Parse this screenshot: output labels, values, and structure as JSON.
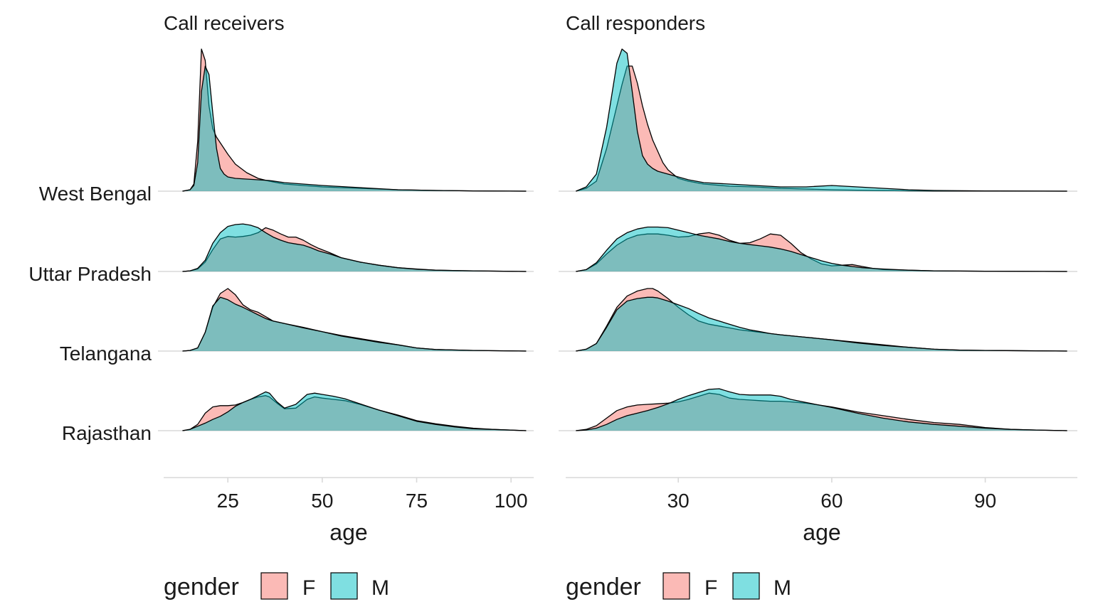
{
  "colors": {
    "F": "#F8766D",
    "M": "#00BFC4",
    "axis": "#d9d9d9",
    "outline": "#000000"
  },
  "chart_data": [
    {
      "type": "area",
      "title": "Call receivers",
      "xlabel": "age",
      "xlim": [
        8,
        106
      ],
      "xticks": [
        25,
        50,
        75,
        100
      ],
      "categories": [
        "West Bengal",
        "Uttar Pradesh",
        "Telangana",
        "Rajasthan"
      ],
      "legend": {
        "title": "gender",
        "position": "bottom",
        "entries": [
          "F",
          "M"
        ]
      },
      "series": [
        {
          "region": "West Bengal",
          "gender": "F",
          "x": [
            13,
            15,
            16,
            17,
            18,
            19,
            20,
            21,
            22,
            23,
            24,
            25,
            27,
            30,
            33,
            36,
            40,
            45,
            50,
            60,
            70,
            80,
            90,
            104
          ],
          "y": [
            0,
            0.01,
            0.05,
            0.35,
            1.0,
            0.92,
            0.6,
            0.44,
            0.38,
            0.34,
            0.3,
            0.26,
            0.19,
            0.13,
            0.09,
            0.07,
            0.05,
            0.04,
            0.03,
            0.02,
            0.01,
            0.005,
            0.002,
            0
          ]
        },
        {
          "region": "West Bengal",
          "gender": "M",
          "x": [
            13,
            15,
            16,
            17,
            18,
            19,
            20,
            21,
            22,
            23,
            24,
            25,
            27,
            30,
            33,
            36,
            40,
            45,
            50,
            60,
            70,
            80,
            90,
            104
          ],
          "y": [
            0,
            0.01,
            0.04,
            0.2,
            0.7,
            0.88,
            0.82,
            0.55,
            0.3,
            0.16,
            0.12,
            0.1,
            0.09,
            0.085,
            0.08,
            0.075,
            0.06,
            0.05,
            0.04,
            0.025,
            0.01,
            0.005,
            0.002,
            0
          ]
        },
        {
          "region": "Uttar Pradesh",
          "gender": "F",
          "x": [
            13,
            15,
            17,
            19,
            21,
            23,
            25,
            27,
            29,
            31,
            33,
            35,
            37,
            39,
            41,
            43,
            45,
            47,
            49,
            52,
            55,
            60,
            65,
            70,
            75,
            80,
            90,
            104
          ],
          "y": [
            0,
            0.01,
            0.04,
            0.15,
            0.35,
            0.52,
            0.56,
            0.55,
            0.56,
            0.58,
            0.62,
            0.7,
            0.66,
            0.6,
            0.55,
            0.55,
            0.5,
            0.43,
            0.37,
            0.3,
            0.22,
            0.15,
            0.1,
            0.06,
            0.04,
            0.02,
            0.01,
            0
          ]
        },
        {
          "region": "Uttar Pradesh",
          "gender": "M",
          "x": [
            13,
            15,
            17,
            19,
            21,
            23,
            25,
            27,
            29,
            31,
            33,
            35,
            37,
            39,
            41,
            43,
            45,
            47,
            49,
            52,
            55,
            60,
            65,
            70,
            75,
            80,
            90,
            104
          ],
          "y": [
            0,
            0.01,
            0.05,
            0.18,
            0.45,
            0.62,
            0.72,
            0.75,
            0.76,
            0.74,
            0.7,
            0.62,
            0.55,
            0.5,
            0.46,
            0.44,
            0.42,
            0.38,
            0.33,
            0.28,
            0.22,
            0.15,
            0.1,
            0.06,
            0.035,
            0.02,
            0.01,
            0
          ]
        },
        {
          "region": "Telangana",
          "gender": "F",
          "x": [
            13,
            15,
            17,
            19,
            21,
            23,
            25,
            27,
            29,
            31,
            33,
            35,
            37,
            40,
            45,
            50,
            55,
            60,
            65,
            70,
            75,
            80,
            90,
            104
          ],
          "y": [
            0,
            0.01,
            0.05,
            0.3,
            0.7,
            0.92,
            1.0,
            0.9,
            0.74,
            0.66,
            0.62,
            0.55,
            0.48,
            0.44,
            0.38,
            0.31,
            0.25,
            0.2,
            0.15,
            0.1,
            0.05,
            0.025,
            0.01,
            0
          ]
        },
        {
          "region": "Telangana",
          "gender": "M",
          "x": [
            13,
            15,
            17,
            19,
            21,
            23,
            25,
            27,
            29,
            31,
            33,
            35,
            37,
            40,
            45,
            50,
            55,
            60,
            65,
            70,
            75,
            80,
            90,
            104
          ],
          "y": [
            0,
            0.01,
            0.05,
            0.3,
            0.72,
            0.86,
            0.82,
            0.75,
            0.7,
            0.64,
            0.58,
            0.52,
            0.48,
            0.44,
            0.37,
            0.31,
            0.24,
            0.19,
            0.14,
            0.1,
            0.05,
            0.025,
            0.01,
            0
          ]
        },
        {
          "region": "Rajasthan",
          "gender": "F",
          "x": [
            13,
            15,
            17,
            19,
            21,
            23,
            25,
            27,
            29,
            31,
            33,
            35,
            36,
            38,
            40,
            43,
            46,
            48,
            50,
            53,
            56,
            60,
            65,
            70,
            75,
            80,
            85,
            90,
            95,
            104
          ],
          "y": [
            0,
            0.02,
            0.1,
            0.28,
            0.38,
            0.4,
            0.4,
            0.41,
            0.45,
            0.5,
            0.54,
            0.56,
            0.54,
            0.44,
            0.35,
            0.36,
            0.5,
            0.54,
            0.52,
            0.5,
            0.48,
            0.42,
            0.33,
            0.25,
            0.16,
            0.11,
            0.07,
            0.04,
            0.02,
            0
          ]
        },
        {
          "region": "Rajasthan",
          "gender": "M",
          "x": [
            13,
            15,
            17,
            19,
            21,
            23,
            25,
            27,
            29,
            31,
            33,
            35,
            36,
            38,
            40,
            43,
            46,
            48,
            50,
            53,
            56,
            60,
            65,
            70,
            75,
            80,
            85,
            90,
            95,
            104
          ],
          "y": [
            0,
            0.02,
            0.07,
            0.12,
            0.18,
            0.23,
            0.3,
            0.39,
            0.45,
            0.5,
            0.56,
            0.62,
            0.6,
            0.46,
            0.36,
            0.42,
            0.58,
            0.6,
            0.58,
            0.55,
            0.51,
            0.43,
            0.33,
            0.24,
            0.15,
            0.1,
            0.06,
            0.03,
            0.02,
            0
          ]
        }
      ]
    },
    {
      "type": "area",
      "title": "Call responders",
      "xlabel": "age",
      "xlim": [
        8,
        108
      ],
      "xticks": [
        30,
        60,
        90
      ],
      "categories": [
        "West Bengal",
        "Uttar Pradesh",
        "Telangana",
        "Rajasthan"
      ],
      "legend": {
        "title": "gender",
        "position": "bottom",
        "entries": [
          "F",
          "M"
        ]
      },
      "series": [
        {
          "region": "West Bengal",
          "gender": "F",
          "x": [
            10,
            12,
            14,
            16,
            18,
            19,
            20,
            21,
            22,
            23,
            24,
            25,
            26,
            27,
            28,
            30,
            32,
            35,
            40,
            45,
            50,
            55,
            60,
            65,
            70,
            75,
            80,
            90,
            106
          ],
          "y": [
            0,
            0.02,
            0.07,
            0.3,
            0.6,
            0.75,
            0.88,
            0.88,
            0.76,
            0.6,
            0.47,
            0.36,
            0.28,
            0.2,
            0.15,
            0.09,
            0.07,
            0.05,
            0.035,
            0.03,
            0.02,
            0.015,
            0.01,
            0.007,
            0.004,
            0.002,
            0.001,
            0.0005,
            0
          ]
        },
        {
          "region": "West Bengal",
          "gender": "M",
          "x": [
            10,
            12,
            14,
            16,
            18,
            19,
            20,
            21,
            22,
            23,
            24,
            25,
            26,
            27,
            28,
            30,
            32,
            35,
            40,
            45,
            50,
            55,
            60,
            65,
            70,
            75,
            80,
            90,
            106
          ],
          "y": [
            0,
            0.03,
            0.12,
            0.45,
            0.9,
            1.0,
            0.97,
            0.7,
            0.42,
            0.25,
            0.19,
            0.16,
            0.14,
            0.13,
            0.12,
            0.1,
            0.08,
            0.06,
            0.05,
            0.04,
            0.03,
            0.03,
            0.04,
            0.03,
            0.02,
            0.01,
            0.005,
            0.002,
            0
          ]
        },
        {
          "region": "Uttar Pradesh",
          "gender": "F",
          "x": [
            10,
            12,
            14,
            16,
            18,
            20,
            22,
            24,
            26,
            28,
            30,
            32,
            34,
            36,
            38,
            40,
            42,
            44,
            46,
            48,
            50,
            52,
            54,
            56,
            58,
            60,
            62,
            64,
            66,
            68,
            70,
            75,
            80,
            90,
            106
          ],
          "y": [
            0,
            0.03,
            0.12,
            0.28,
            0.42,
            0.52,
            0.58,
            0.6,
            0.6,
            0.58,
            0.55,
            0.56,
            0.6,
            0.62,
            0.58,
            0.5,
            0.45,
            0.46,
            0.52,
            0.6,
            0.58,
            0.45,
            0.3,
            0.2,
            0.12,
            0.09,
            0.1,
            0.11,
            0.08,
            0.05,
            0.03,
            0.02,
            0.01,
            0.005,
            0
          ]
        },
        {
          "region": "Uttar Pradesh",
          "gender": "M",
          "x": [
            10,
            12,
            14,
            16,
            18,
            20,
            22,
            24,
            26,
            28,
            30,
            32,
            34,
            36,
            38,
            40,
            42,
            44,
            46,
            48,
            50,
            52,
            54,
            56,
            58,
            60,
            62,
            64,
            66,
            68,
            70,
            75,
            80,
            90,
            106
          ],
          "y": [
            0,
            0.03,
            0.14,
            0.34,
            0.52,
            0.62,
            0.68,
            0.71,
            0.71,
            0.7,
            0.66,
            0.62,
            0.58,
            0.55,
            0.52,
            0.48,
            0.45,
            0.43,
            0.41,
            0.39,
            0.36,
            0.32,
            0.27,
            0.22,
            0.17,
            0.13,
            0.1,
            0.08,
            0.06,
            0.05,
            0.04,
            0.02,
            0.01,
            0.005,
            0
          ]
        },
        {
          "region": "Telangana",
          "gender": "F",
          "x": [
            10,
            12,
            14,
            16,
            18,
            20,
            22,
            24,
            25,
            26,
            28,
            30,
            32,
            34,
            36,
            38,
            40,
            42,
            44,
            46,
            48,
            50,
            55,
            60,
            65,
            70,
            75,
            80,
            85,
            90,
            106
          ],
          "y": [
            0,
            0.03,
            0.12,
            0.4,
            0.7,
            0.88,
            0.96,
            1.0,
            1.0,
            0.96,
            0.84,
            0.7,
            0.58,
            0.48,
            0.43,
            0.4,
            0.37,
            0.34,
            0.32,
            0.3,
            0.28,
            0.26,
            0.22,
            0.18,
            0.14,
            0.1,
            0.06,
            0.03,
            0.015,
            0.01,
            0
          ]
        },
        {
          "region": "Telangana",
          "gender": "M",
          "x": [
            10,
            12,
            14,
            16,
            18,
            20,
            22,
            24,
            25,
            26,
            28,
            30,
            32,
            34,
            36,
            38,
            40,
            42,
            44,
            46,
            48,
            50,
            55,
            60,
            65,
            70,
            75,
            80,
            85,
            90,
            106
          ],
          "y": [
            0,
            0.03,
            0.12,
            0.38,
            0.66,
            0.8,
            0.84,
            0.86,
            0.86,
            0.85,
            0.8,
            0.74,
            0.68,
            0.6,
            0.53,
            0.48,
            0.43,
            0.38,
            0.34,
            0.31,
            0.28,
            0.26,
            0.22,
            0.18,
            0.13,
            0.09,
            0.06,
            0.03,
            0.015,
            0.01,
            0
          ]
        },
        {
          "region": "Rajasthan",
          "gender": "F",
          "x": [
            10,
            12,
            14,
            16,
            18,
            20,
            22,
            24,
            26,
            28,
            30,
            32,
            34,
            36,
            38,
            40,
            42,
            44,
            46,
            48,
            50,
            52,
            55,
            60,
            65,
            70,
            75,
            80,
            85,
            90,
            95,
            100,
            106
          ],
          "y": [
            0,
            0.02,
            0.08,
            0.2,
            0.32,
            0.38,
            0.41,
            0.42,
            0.43,
            0.44,
            0.46,
            0.5,
            0.55,
            0.6,
            0.58,
            0.52,
            0.5,
            0.49,
            0.48,
            0.47,
            0.47,
            0.46,
            0.44,
            0.38,
            0.3,
            0.24,
            0.18,
            0.13,
            0.1,
            0.05,
            0.02,
            0.01,
            0
          ]
        },
        {
          "region": "Rajasthan",
          "gender": "M",
          "x": [
            10,
            12,
            14,
            16,
            18,
            20,
            22,
            24,
            26,
            28,
            30,
            32,
            34,
            36,
            38,
            40,
            42,
            44,
            46,
            48,
            50,
            52,
            55,
            60,
            65,
            70,
            75,
            80,
            85,
            90,
            95,
            100,
            106
          ],
          "y": [
            0,
            0.01,
            0.04,
            0.1,
            0.18,
            0.24,
            0.28,
            0.32,
            0.37,
            0.43,
            0.5,
            0.56,
            0.61,
            0.66,
            0.67,
            0.62,
            0.58,
            0.57,
            0.57,
            0.57,
            0.55,
            0.5,
            0.45,
            0.37,
            0.28,
            0.2,
            0.14,
            0.1,
            0.07,
            0.04,
            0.02,
            0.01,
            0
          ]
        }
      ]
    }
  ]
}
